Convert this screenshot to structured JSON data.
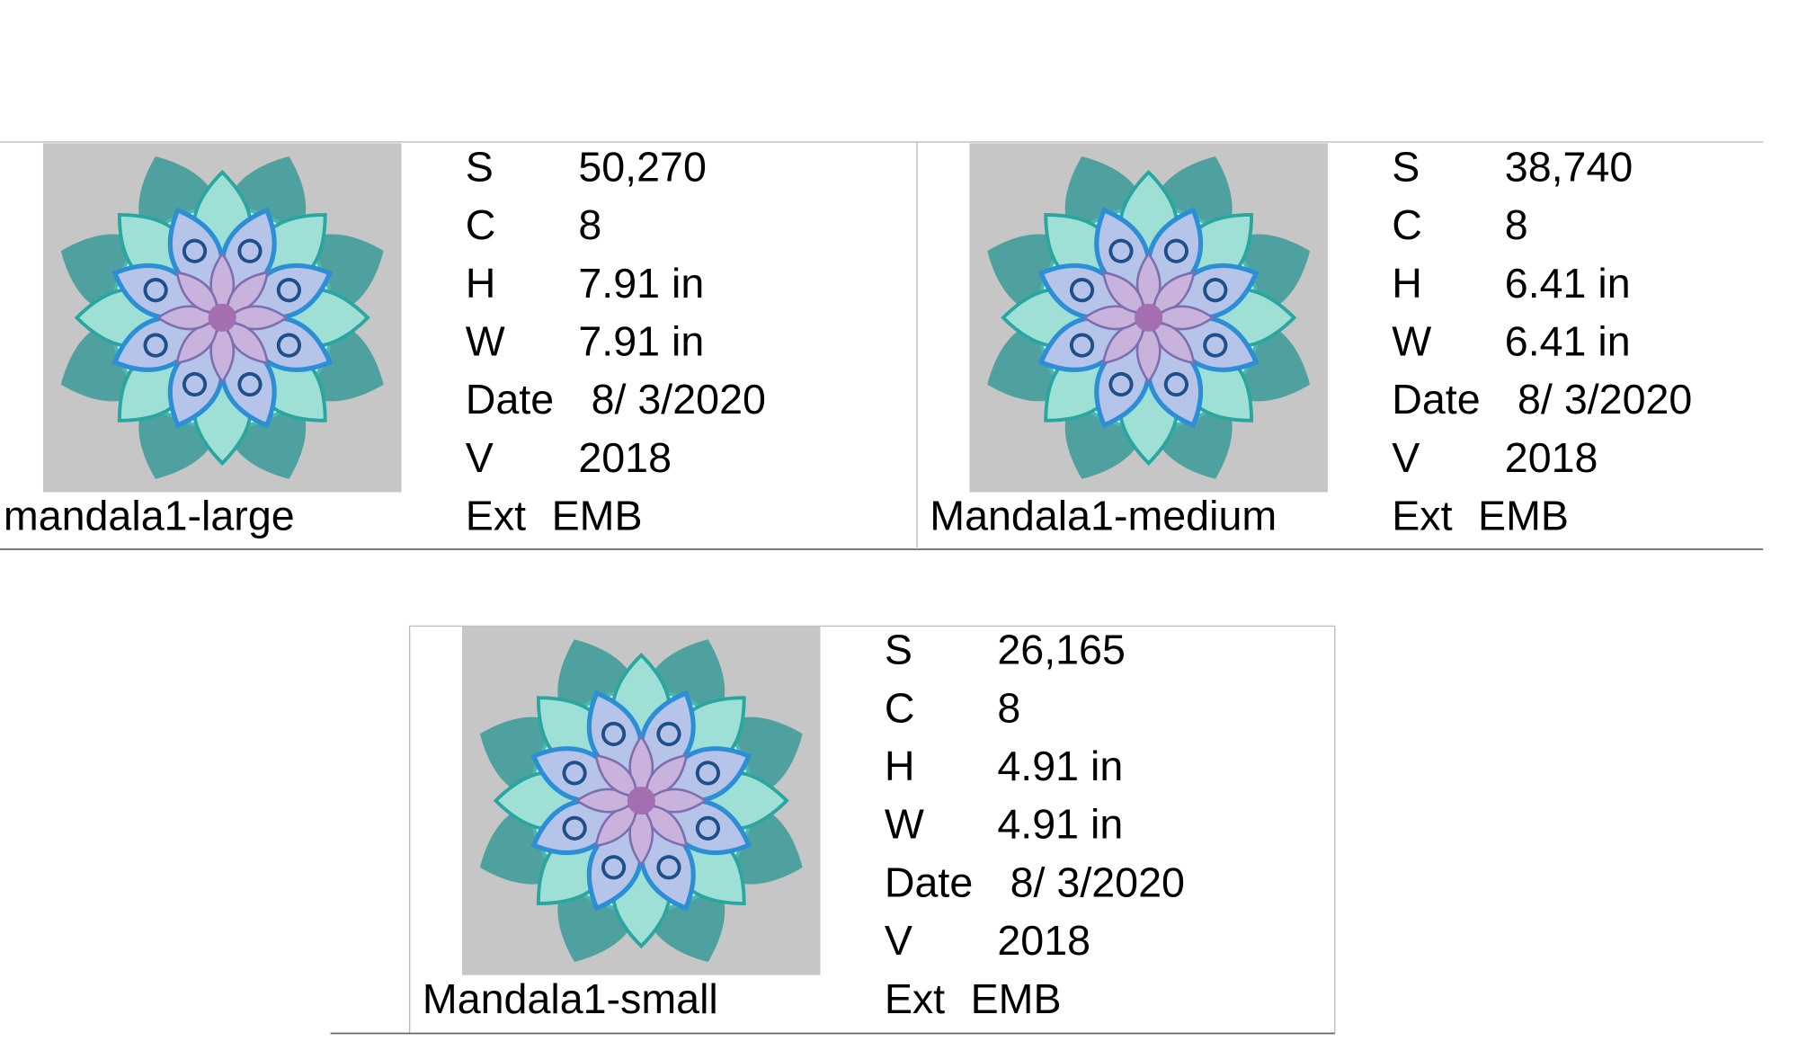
{
  "cards": [
    {
      "name": "mandala1-large",
      "fields": [
        {
          "label": "S",
          "value": "50,270"
        },
        {
          "label": "C",
          "value": "8"
        },
        {
          "label": "H",
          "value": "7.91 in"
        },
        {
          "label": "W",
          "value": "7.91 in"
        },
        {
          "label": "Date",
          "value": "8/ 3/2020"
        },
        {
          "label": "V",
          "value": "2018"
        },
        {
          "label": "Ext",
          "value": "EMB"
        }
      ]
    },
    {
      "name": "Mandala1-medium",
      "fields": [
        {
          "label": "S",
          "value": "38,740"
        },
        {
          "label": "C",
          "value": "8"
        },
        {
          "label": "H",
          "value": "6.41 in"
        },
        {
          "label": "W",
          "value": "6.41 in"
        },
        {
          "label": "Date",
          "value": "8/ 3/2020"
        },
        {
          "label": "V",
          "value": "2018"
        },
        {
          "label": "Ext",
          "value": "EMB"
        }
      ]
    },
    {
      "name": "Mandala1-small",
      "fields": [
        {
          "label": "S",
          "value": "26,165"
        },
        {
          "label": "C",
          "value": "8"
        },
        {
          "label": "H",
          "value": "4.91 in"
        },
        {
          "label": "W",
          "value": "4.91 in"
        },
        {
          "label": "Date",
          "value": "8/ 3/2020"
        },
        {
          "label": "V",
          "value": "2018"
        },
        {
          "label": "Ext",
          "value": "EMB"
        }
      ]
    }
  ]
}
